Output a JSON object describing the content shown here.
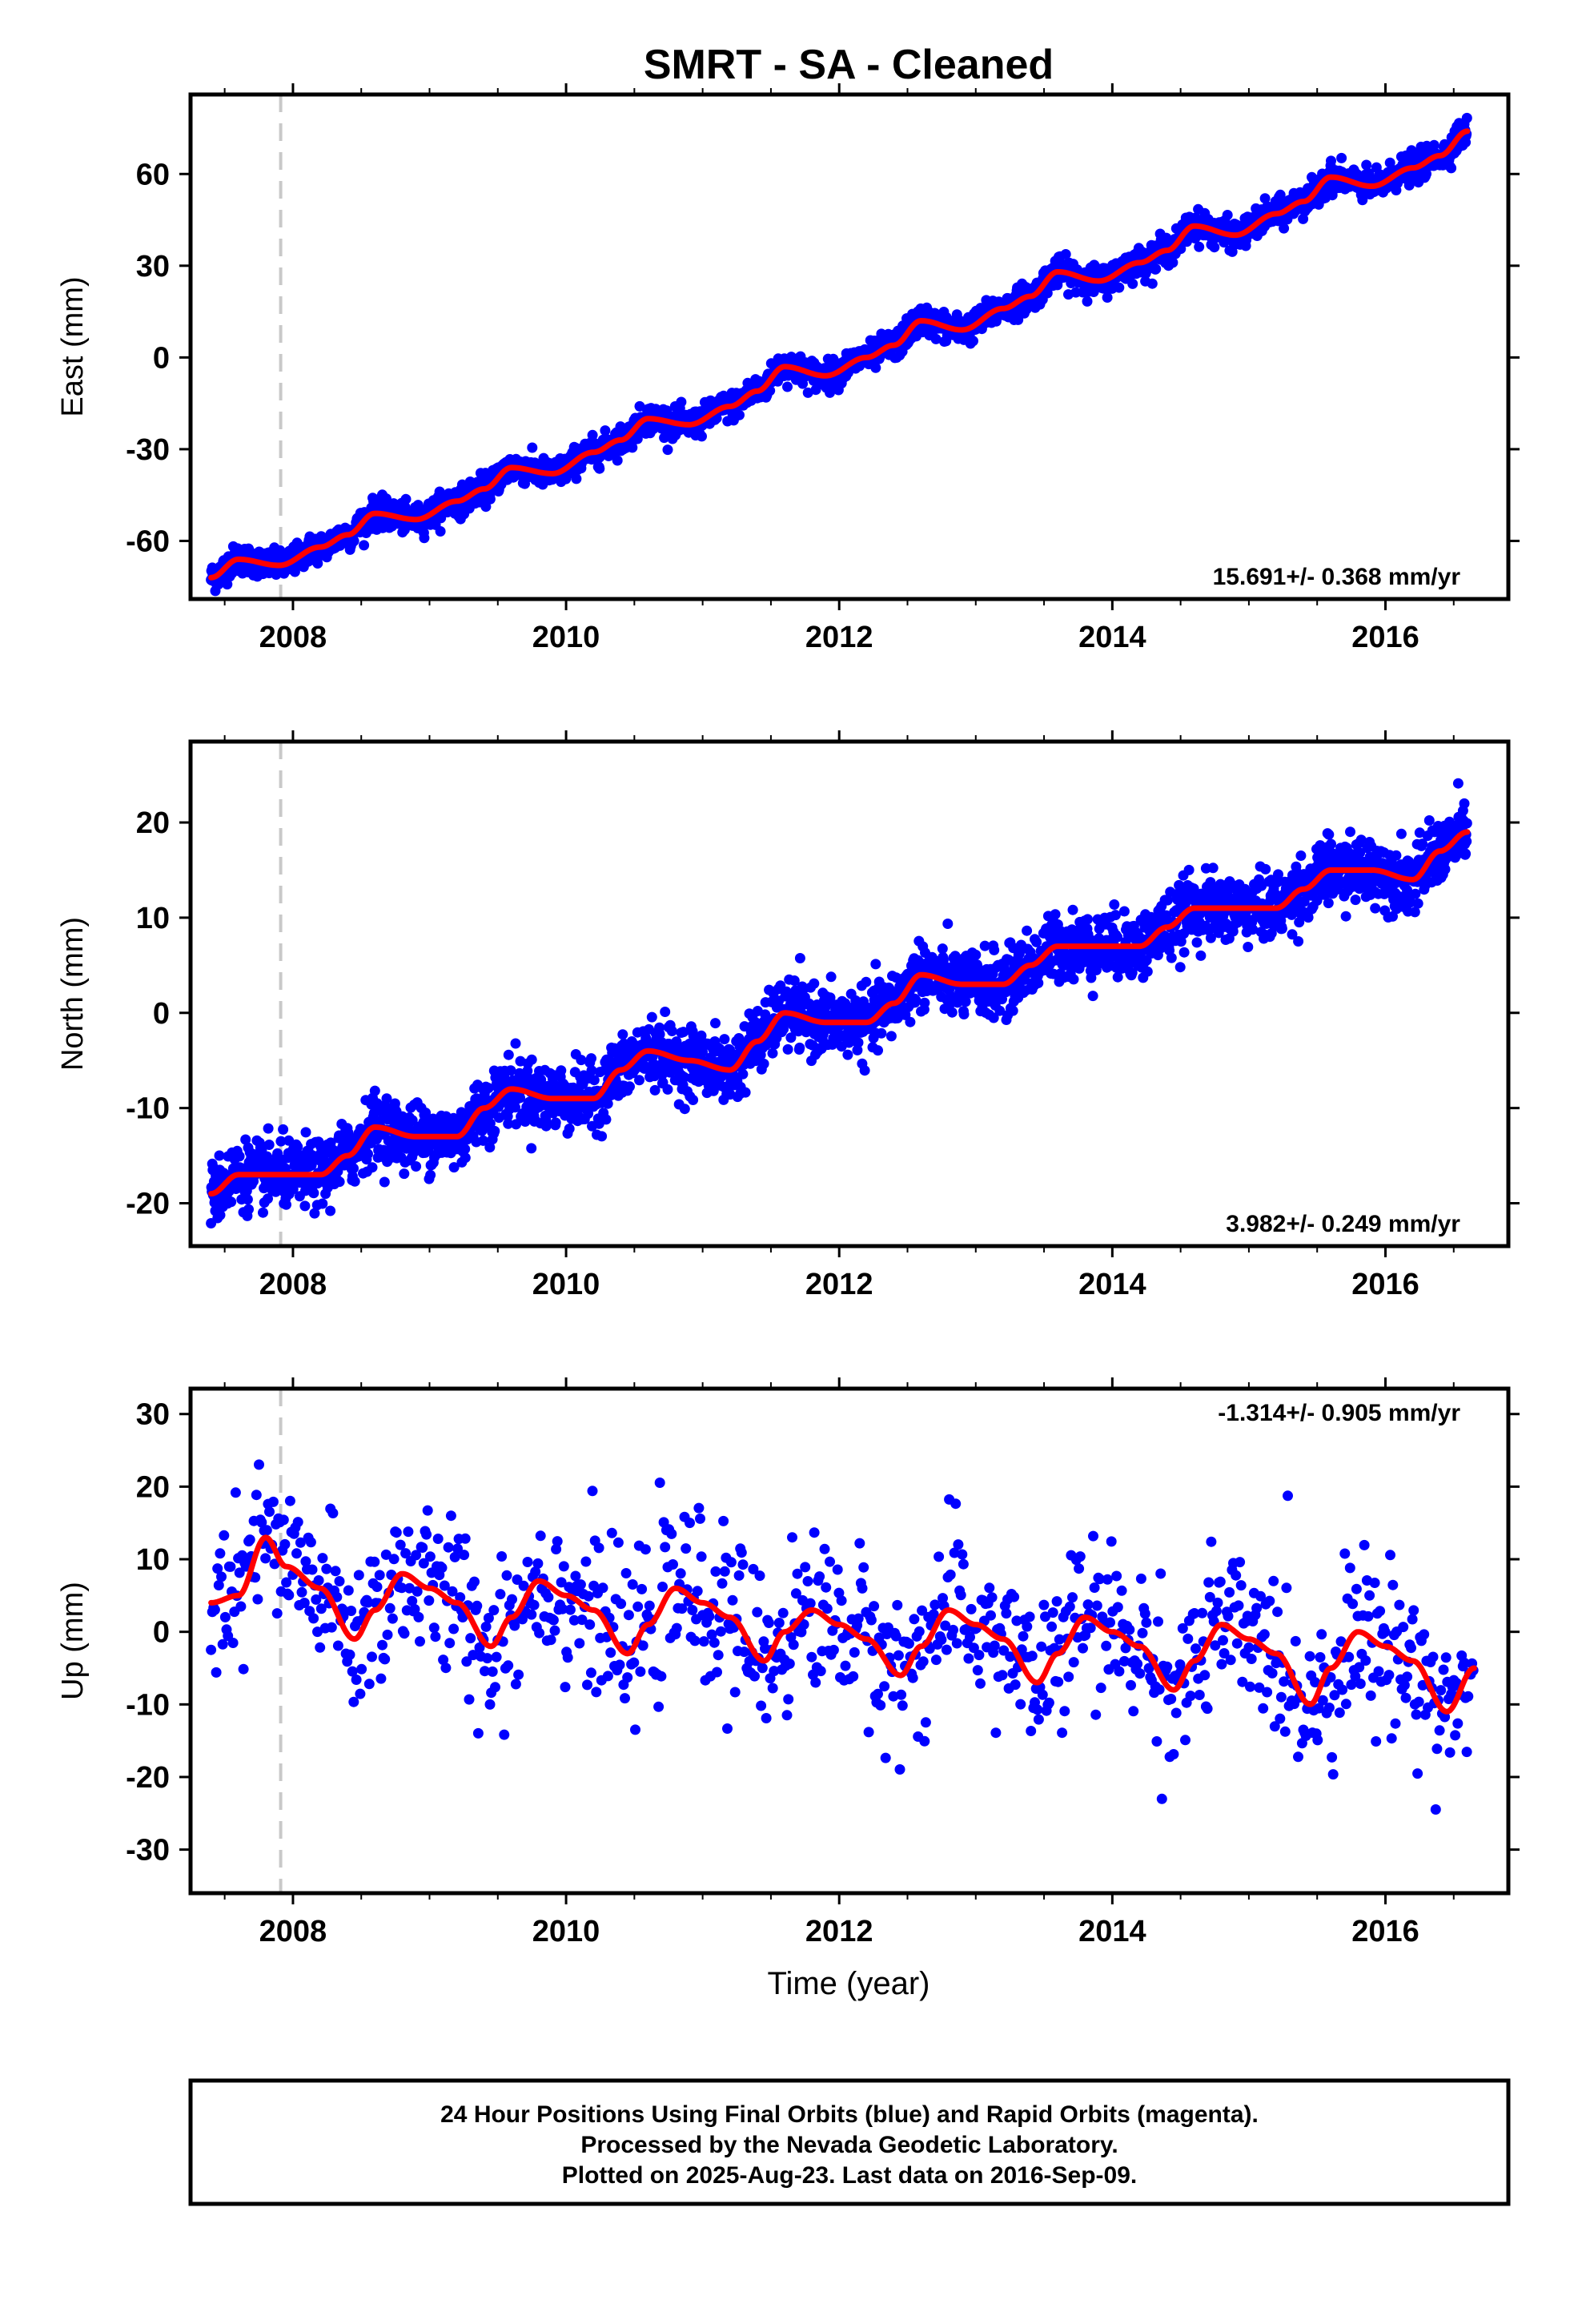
{
  "title": "SMRT  - SA - Cleaned",
  "xlabel": "Time (year)",
  "footer": [
    "24 Hour Positions Using Final Orbits (blue) and Rapid Orbits (magenta).",
    "Processed by the Nevada Geodetic Laboratory.",
    "Plotted on 2025-Aug-23. Last data on 2016-Sep-09."
  ],
  "colors": {
    "points": "#0000ff",
    "fit": "#ff0000",
    "marker_line": "#c8c8c8",
    "frame": "#000000"
  },
  "chart_data": [
    {
      "type": "scatter",
      "component": "east",
      "ylabel": "East (mm)",
      "rate_label": "15.691+/- 0.368 mm/yr",
      "xlim": [
        2007.25,
        2016.9
      ],
      "ylim": [
        -79,
        86
      ],
      "xticks": [
        "2008",
        "2010",
        "2012",
        "2014",
        "2016"
      ],
      "yticks": [
        "-60",
        "-30",
        "0",
        "30",
        "60"
      ],
      "marker_year": 2007.91,
      "series": [
        {
          "name": "Final Orbits",
          "x": [
            2007.4,
            2007.6,
            2007.9,
            2008.2,
            2008.4,
            2008.6,
            2008.9,
            2009.2,
            2009.4,
            2009.6,
            2009.9,
            2010.2,
            2010.4,
            2010.6,
            2010.9,
            2011.2,
            2011.4,
            2011.6,
            2011.9,
            2012.2,
            2012.4,
            2012.6,
            2012.9,
            2013.2,
            2013.4,
            2013.6,
            2013.9,
            2014.2,
            2014.4,
            2014.6,
            2014.9,
            2015.2,
            2015.4,
            2015.6,
            2015.9,
            2016.2,
            2016.4,
            2016.6
          ],
          "y": [
            -72,
            -66,
            -68,
            -62,
            -58,
            -51,
            -53,
            -47,
            -43,
            -36,
            -38,
            -31,
            -27,
            -20,
            -22,
            -16,
            -11,
            -3,
            -6,
            0,
            4,
            12,
            9,
            16,
            20,
            28,
            25,
            31,
            35,
            43,
            40,
            47,
            51,
            59,
            56,
            62,
            66,
            74
          ]
        },
        {
          "name": "Seasonal fit",
          "x": [
            2007.4,
            2007.6,
            2007.9,
            2008.2,
            2008.4,
            2008.6,
            2008.9,
            2009.2,
            2009.4,
            2009.6,
            2009.9,
            2010.2,
            2010.4,
            2010.6,
            2010.9,
            2011.2,
            2011.4,
            2011.6,
            2011.9,
            2012.2,
            2012.4,
            2012.6,
            2012.9,
            2013.2,
            2013.4,
            2013.6,
            2013.9,
            2014.2,
            2014.4,
            2014.6,
            2014.9,
            2015.2,
            2015.4,
            2015.6,
            2015.9,
            2016.2,
            2016.4,
            2016.6
          ],
          "y": [
            -72,
            -66,
            -68,
            -62,
            -58,
            -51,
            -53,
            -47,
            -43,
            -36,
            -38,
            -31,
            -27,
            -20,
            -22,
            -16,
            -11,
            -3,
            -6,
            0,
            4,
            12,
            9,
            16,
            20,
            28,
            25,
            31,
            35,
            43,
            40,
            47,
            51,
            59,
            56,
            62,
            66,
            74
          ]
        }
      ]
    },
    {
      "type": "scatter",
      "component": "north",
      "ylabel": "North (mm)",
      "rate_label": "3.982+/- 0.249 mm/yr",
      "xlim": [
        2007.25,
        2016.9
      ],
      "ylim": [
        -24.5,
        28.5
      ],
      "xticks": [
        "2008",
        "2010",
        "2012",
        "2014",
        "2016"
      ],
      "yticks": [
        "-20",
        "-10",
        "0",
        "10",
        "20"
      ],
      "marker_year": 2007.91,
      "series": [
        {
          "name": "Final Orbits",
          "x": [
            2007.4,
            2007.6,
            2007.9,
            2008.2,
            2008.4,
            2008.6,
            2008.9,
            2009.2,
            2009.4,
            2009.6,
            2009.9,
            2010.2,
            2010.4,
            2010.6,
            2010.9,
            2011.2,
            2011.4,
            2011.6,
            2011.9,
            2012.2,
            2012.4,
            2012.6,
            2012.9,
            2013.2,
            2013.4,
            2013.6,
            2013.9,
            2014.2,
            2014.4,
            2014.6,
            2014.9,
            2015.2,
            2015.4,
            2015.6,
            2015.9,
            2016.2,
            2016.4,
            2016.6
          ],
          "y": [
            -19,
            -17,
            -17,
            -17,
            -15,
            -12,
            -13,
            -13,
            -10,
            -8,
            -9,
            -9,
            -6,
            -4,
            -5,
            -6,
            -3,
            0,
            -1,
            -1,
            1,
            4,
            3,
            3,
            5,
            7,
            7,
            7,
            9,
            11,
            11,
            11,
            13,
            15,
            15,
            14,
            17,
            19
          ]
        },
        {
          "name": "Seasonal fit",
          "x": [
            2007.4,
            2007.6,
            2007.9,
            2008.2,
            2008.4,
            2008.6,
            2008.9,
            2009.2,
            2009.4,
            2009.6,
            2009.9,
            2010.2,
            2010.4,
            2010.6,
            2010.9,
            2011.2,
            2011.4,
            2011.6,
            2011.9,
            2012.2,
            2012.4,
            2012.6,
            2012.9,
            2013.2,
            2013.4,
            2013.6,
            2013.9,
            2014.2,
            2014.4,
            2014.6,
            2014.9,
            2015.2,
            2015.4,
            2015.6,
            2015.9,
            2016.2,
            2016.4,
            2016.6
          ],
          "y": [
            -19,
            -17,
            -17,
            -17,
            -15,
            -12,
            -13,
            -13,
            -10,
            -8,
            -9,
            -9,
            -6,
            -4,
            -5,
            -6,
            -3,
            0,
            -1,
            -1,
            1,
            4,
            3,
            3,
            5,
            7,
            7,
            7,
            9,
            11,
            11,
            11,
            13,
            15,
            15,
            14,
            17,
            19
          ]
        }
      ]
    },
    {
      "type": "scatter",
      "component": "up",
      "ylabel": "Up (mm)",
      "rate_label": "-1.314+/- 0.905 mm/yr",
      "xlim": [
        2007.25,
        2016.9
      ],
      "ylim": [
        -36,
        33.5
      ],
      "xticks": [
        "2008",
        "2010",
        "2012",
        "2014",
        "2016"
      ],
      "yticks": [
        "-30",
        "-20",
        "-10",
        "0",
        "10",
        "20",
        "30"
      ],
      "marker_year": 2007.91,
      "series": [
        {
          "name": "Final Orbits",
          "x": [
            2007.4,
            2007.6,
            2007.8,
            2007.95,
            2008.2,
            2008.45,
            2008.6,
            2008.8,
            2009.0,
            2009.2,
            2009.45,
            2009.6,
            2009.8,
            2010.0,
            2010.2,
            2010.45,
            2010.6,
            2010.8,
            2011.0,
            2011.2,
            2011.45,
            2011.6,
            2011.8,
            2012.0,
            2012.2,
            2012.45,
            2012.6,
            2012.8,
            2013.0,
            2013.2,
            2013.45,
            2013.6,
            2013.8,
            2014.0,
            2014.2,
            2014.45,
            2014.6,
            2014.8,
            2015.0,
            2015.2,
            2015.45,
            2015.6,
            2015.8,
            2016.0,
            2016.2,
            2016.45,
            2016.65
          ],
          "y": [
            4,
            5,
            13,
            9,
            6,
            -1,
            3,
            8,
            6,
            4,
            -2,
            2,
            7,
            5,
            3,
            -3,
            1,
            6,
            4,
            2,
            -4,
            0,
            3,
            1,
            -1,
            -6,
            -2,
            3,
            1,
            -1,
            -7,
            -3,
            2,
            0,
            -2,
            -8,
            -4,
            1,
            -1,
            -3,
            -10,
            -5,
            0,
            -2,
            -4,
            -11,
            -5
          ]
        },
        {
          "name": "Seasonal fit",
          "x": [
            2007.4,
            2007.6,
            2007.8,
            2007.95,
            2008.2,
            2008.45,
            2008.6,
            2008.8,
            2009.0,
            2009.2,
            2009.45,
            2009.6,
            2009.8,
            2010.0,
            2010.2,
            2010.45,
            2010.6,
            2010.8,
            2011.0,
            2011.2,
            2011.45,
            2011.6,
            2011.8,
            2012.0,
            2012.2,
            2012.45,
            2012.6,
            2012.8,
            2013.0,
            2013.2,
            2013.45,
            2013.6,
            2013.8,
            2014.0,
            2014.2,
            2014.45,
            2014.6,
            2014.8,
            2015.0,
            2015.2,
            2015.45,
            2015.6,
            2015.8,
            2016.0,
            2016.2,
            2016.45,
            2016.65
          ],
          "y": [
            4,
            5,
            13,
            9,
            6,
            -1,
            3,
            8,
            6,
            4,
            -2,
            2,
            7,
            5,
            3,
            -3,
            1,
            6,
            4,
            2,
            -4,
            0,
            3,
            1,
            -1,
            -6,
            -2,
            3,
            1,
            -1,
            -7,
            -3,
            2,
            0,
            -2,
            -8,
            -4,
            1,
            -1,
            -3,
            -10,
            -5,
            0,
            -2,
            -4,
            -11,
            -5
          ]
        }
      ]
    }
  ]
}
